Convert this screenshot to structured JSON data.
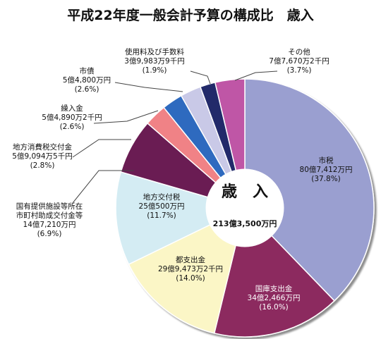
{
  "chart_data": {
    "type": "pie",
    "title": "平成22年度一般会計予算の構成比　歳入",
    "center_label": "歳　入",
    "center_total": "213億3,500万円",
    "colors": {
      "市税": "#9a9fd0",
      "国庫支出金": "#8c2c5e",
      "都支出金": "#fbf6c6",
      "地方交付税": "#d4ecf3",
      "国有提供施設等所在市町村助成交付金等": "#6b1d52",
      "地方消費税交付金": "#f08286",
      "繰入金": "#2e6bbf",
      "市債": "#c9c9e7",
      "使用料及び手数料": "#212c6a",
      "その他": "#bf56a6"
    },
    "slices": [
      {
        "name": "市税",
        "amount": "80億7,412万円",
        "percent": "(37.8%)",
        "value": 37.8
      },
      {
        "name": "国庫支出金",
        "amount": "34億2,466万円",
        "percent": "(16.0%)",
        "value": 16.0
      },
      {
        "name": "都支出金",
        "amount": "29億9,473万2千円",
        "percent": "(14.0%)",
        "value": 14.0
      },
      {
        "name": "地方交付税",
        "amount": "25億500万円",
        "percent": "(11.7%)",
        "value": 11.7
      },
      {
        "name": "国有提供施設等所在市町村助成交付金等",
        "name_lines": [
          "国有提供施設等所在",
          "市町村助成交付金等"
        ],
        "amount": "14億7,210万円",
        "percent": "(6.9%)",
        "value": 6.9
      },
      {
        "name": "地方消費税交付金",
        "amount": "5億9,094万5千円",
        "percent": "(2.8%)",
        "value": 2.8
      },
      {
        "name": "繰入金",
        "amount": "5億4,890万2千円",
        "percent": "(2.6%)",
        "value": 2.6
      },
      {
        "name": "市債",
        "amount": "5億4,800万円",
        "percent": "(2.6%)",
        "value": 2.6
      },
      {
        "name": "使用料及び手数料",
        "amount": "3億9,983万9千円",
        "percent": "(1.9%)",
        "value": 1.9
      },
      {
        "name": "その他",
        "amount": "7億7,670万2千円",
        "percent": "(3.7%)",
        "value": 3.7
      }
    ]
  }
}
